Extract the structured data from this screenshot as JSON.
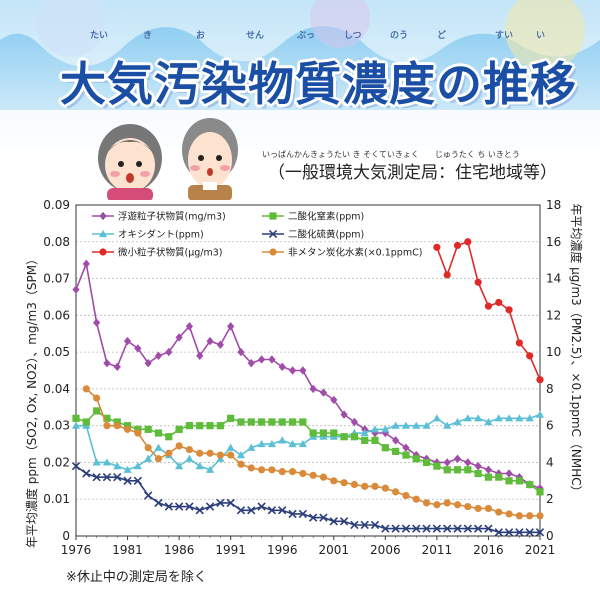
{
  "title": "大気汚染物質濃度の推移",
  "title_ruby": [
    "たい",
    "き",
    "お",
    "せん",
    "ぶっ",
    "しつ",
    "のう",
    "ど",
    "すい",
    "い"
  ],
  "subtitle": "（一般環境大気測定局：住宅地域等）",
  "subtitle_ruby": "いっぱんかんきょうたい き そくていきょく　　じゅうたく ち いきとう",
  "footnote": "※休止中の測定局を除く",
  "colors": {
    "spm": "#a04ca8",
    "no2": "#5fbb3a",
    "ox": "#5bc0d6",
    "so2": "#2c3e7a",
    "pm25": "#e02a2a",
    "nmhc": "#d98a3a",
    "title": "#1a4fa5"
  },
  "chart_data": {
    "type": "line",
    "xlabel": "",
    "ylabel_left": "年平均濃度 ppm（SO2, Ox, NO2）、mg/m3（SPM）",
    "ylabel_right": "年平均濃度 μg/m3（PM2.5）、×0.1ppmC（NMHC）",
    "ylabel_left_unit": "ppm（SO₂, Ox, NO₂）、mg/m³（SPM）",
    "ylabel_left_main": "年平均濃度",
    "ylabel_right_unit": "μg/m³（PM2.5）、×0.1ppmC（NMHC）",
    "ylabel_right_main": "年平均濃度",
    "xlim": [
      1976,
      2021
    ],
    "ylim_left": [
      0,
      0.09
    ],
    "ylim_right": [
      0,
      18
    ],
    "x_ticks": [
      "1976",
      "1981",
      "1986",
      "1991",
      "1996",
      "2001",
      "2006",
      "2011",
      "2016",
      "2021"
    ],
    "y_left_ticks": [
      "0",
      "0.01",
      "0.02",
      "0.03",
      "0.04",
      "0.05",
      "0.06",
      "0.07",
      "0.08",
      "0.09"
    ],
    "y_right_ticks": [
      "0",
      "2",
      "4",
      "6",
      "8",
      "10",
      "12",
      "14",
      "16",
      "18"
    ],
    "series": [
      {
        "key": "spm",
        "name": "浮遊粒子状物質(mg/m3)",
        "axis": "left",
        "marker": "diamond",
        "x": [
          1976,
          1977,
          1978,
          1979,
          1980,
          1981,
          1982,
          1983,
          1984,
          1985,
          1986,
          1987,
          1988,
          1989,
          1990,
          1991,
          1992,
          1993,
          1994,
          1995,
          1996,
          1997,
          1998,
          1999,
          2000,
          2001,
          2002,
          2003,
          2004,
          2005,
          2006,
          2007,
          2008,
          2009,
          2010,
          2011,
          2012,
          2013,
          2014,
          2015,
          2016,
          2017,
          2018,
          2019,
          2020,
          2021
        ],
        "y": [
          0.067,
          0.074,
          0.058,
          0.047,
          0.046,
          0.053,
          0.051,
          0.047,
          0.049,
          0.05,
          0.054,
          0.057,
          0.049,
          0.053,
          0.052,
          0.057,
          0.05,
          0.047,
          0.048,
          0.048,
          0.046,
          0.045,
          0.045,
          0.04,
          0.039,
          0.037,
          0.033,
          0.031,
          0.029,
          0.028,
          0.028,
          0.026,
          0.024,
          0.022,
          0.021,
          0.02,
          0.02,
          0.021,
          0.02,
          0.019,
          0.018,
          0.017,
          0.017,
          0.016,
          0.014,
          0.013
        ]
      },
      {
        "key": "ox",
        "name": "オキシダント(ppm)",
        "axis": "left",
        "marker": "triangle",
        "x": [
          1976,
          1977,
          1978,
          1979,
          1980,
          1981,
          1982,
          1983,
          1984,
          1985,
          1986,
          1987,
          1988,
          1989,
          1990,
          1991,
          1992,
          1993,
          1994,
          1995,
          1996,
          1997,
          1998,
          1999,
          2000,
          2001,
          2002,
          2003,
          2004,
          2005,
          2006,
          2007,
          2008,
          2009,
          2010,
          2011,
          2012,
          2013,
          2014,
          2015,
          2016,
          2017,
          2018,
          2019,
          2020,
          2021
        ],
        "y": [
          0.03,
          0.03,
          0.02,
          0.02,
          0.019,
          0.018,
          0.019,
          0.021,
          0.024,
          0.022,
          0.019,
          0.021,
          0.019,
          0.018,
          0.021,
          0.024,
          0.022,
          0.024,
          0.025,
          0.025,
          0.026,
          0.025,
          0.025,
          0.027,
          0.027,
          0.027,
          0.027,
          0.028,
          0.028,
          0.029,
          0.029,
          0.03,
          0.03,
          0.03,
          0.03,
          0.032,
          0.03,
          0.031,
          0.032,
          0.032,
          0.031,
          0.032,
          0.032,
          0.032,
          0.032,
          0.033
        ]
      },
      {
        "key": "pm25",
        "name": "微小粒子状物質(μg/m3)",
        "axis": "right",
        "marker": "circle",
        "x": [
          2011,
          2012,
          2013,
          2014,
          2015,
          2016,
          2017,
          2018,
          2019,
          2020,
          2021
        ],
        "y": [
          15.7,
          14.2,
          15.8,
          16.0,
          13.8,
          12.5,
          12.7,
          12.3,
          10.5,
          9.8,
          8.5
        ]
      },
      {
        "key": "no2",
        "name": "二酸化窒素(ppm)",
        "axis": "left",
        "marker": "square",
        "x": [
          1976,
          1977,
          1978,
          1979,
          1980,
          1981,
          1982,
          1983,
          1984,
          1985,
          1986,
          1987,
          1988,
          1989,
          1990,
          1991,
          1992,
          1993,
          1994,
          1995,
          1996,
          1997,
          1998,
          1999,
          2000,
          2001,
          2002,
          2003,
          2004,
          2005,
          2006,
          2007,
          2008,
          2009,
          2010,
          2011,
          2012,
          2013,
          2014,
          2015,
          2016,
          2017,
          2018,
          2019,
          2020,
          2021
        ],
        "y": [
          0.032,
          0.031,
          0.034,
          0.032,
          0.031,
          0.03,
          0.029,
          0.029,
          0.028,
          0.027,
          0.029,
          0.03,
          0.03,
          0.03,
          0.03,
          0.032,
          0.031,
          0.031,
          0.031,
          0.031,
          0.031,
          0.031,
          0.031,
          0.028,
          0.028,
          0.028,
          0.027,
          0.027,
          0.026,
          0.026,
          0.024,
          0.023,
          0.022,
          0.021,
          0.02,
          0.019,
          0.018,
          0.018,
          0.018,
          0.017,
          0.016,
          0.016,
          0.015,
          0.015,
          0.014,
          0.012
        ]
      },
      {
        "key": "so2",
        "name": "二酸化硫黄(ppm)",
        "axis": "left",
        "marker": "x",
        "x": [
          1976,
          1977,
          1978,
          1979,
          1980,
          1981,
          1982,
          1983,
          1984,
          1985,
          1986,
          1987,
          1988,
          1989,
          1990,
          1991,
          1992,
          1993,
          1994,
          1995,
          1996,
          1997,
          1998,
          1999,
          2000,
          2001,
          2002,
          2003,
          2004,
          2005,
          2006,
          2007,
          2008,
          2009,
          2010,
          2011,
          2012,
          2013,
          2014,
          2015,
          2016,
          2017,
          2018,
          2019,
          2020,
          2021
        ],
        "y": [
          0.019,
          0.017,
          0.016,
          0.016,
          0.016,
          0.015,
          0.015,
          0.011,
          0.009,
          0.008,
          0.008,
          0.008,
          0.007,
          0.008,
          0.009,
          0.009,
          0.007,
          0.007,
          0.008,
          0.007,
          0.007,
          0.006,
          0.006,
          0.005,
          0.005,
          0.004,
          0.004,
          0.003,
          0.003,
          0.003,
          0.002,
          0.002,
          0.002,
          0.002,
          0.002,
          0.002,
          0.002,
          0.002,
          0.002,
          0.002,
          0.002,
          0.001,
          0.001,
          0.001,
          0.001,
          0.001
        ]
      },
      {
        "key": "nmhc",
        "name": "非メタン炭化水素(×0.1ppmC)",
        "axis": "right",
        "marker": "circle",
        "x": [
          1977,
          1978,
          1979,
          1980,
          1981,
          1982,
          1983,
          1984,
          1985,
          1986,
          1987,
          1988,
          1989,
          1990,
          1991,
          1992,
          1993,
          1994,
          1995,
          1996,
          1997,
          1998,
          1999,
          2000,
          2001,
          2002,
          2003,
          2004,
          2005,
          2006,
          2007,
          2008,
          2009,
          2010,
          2011,
          2012,
          2013,
          2014,
          2015,
          2016,
          2017,
          2018,
          2019,
          2020,
          2021
        ],
        "y": [
          8.0,
          7.5,
          6.0,
          6.0,
          5.8,
          5.6,
          4.8,
          4.2,
          4.5,
          4.9,
          4.7,
          4.5,
          4.5,
          4.4,
          4.4,
          3.9,
          3.7,
          3.6,
          3.6,
          3.5,
          3.5,
          3.4,
          3.3,
          3.2,
          3.0,
          2.9,
          2.8,
          2.7,
          2.7,
          2.6,
          2.4,
          2.2,
          2.0,
          1.8,
          1.7,
          1.8,
          1.7,
          1.6,
          1.5,
          1.5,
          1.3,
          1.2,
          1.1,
          1.1,
          1.1
        ]
      }
    ]
  }
}
